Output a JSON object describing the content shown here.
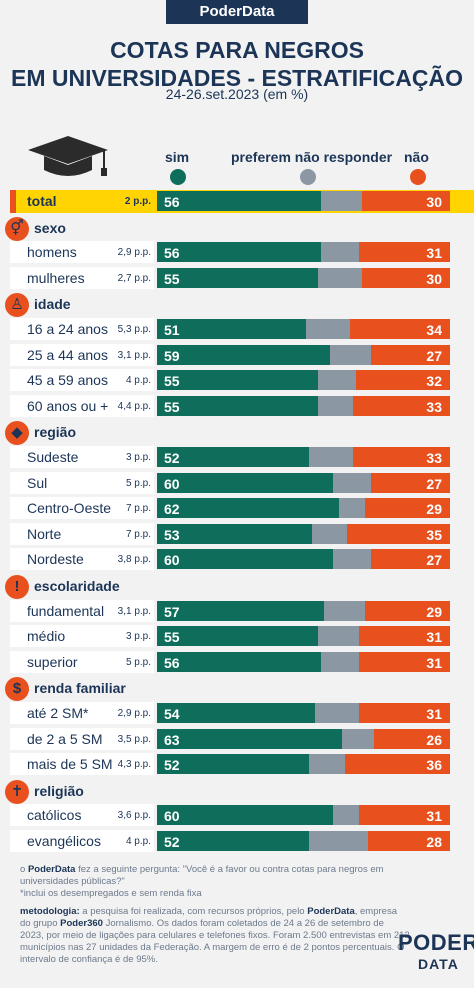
{
  "brand": "PoderData",
  "title_line1": "COTAS PARA NEGROS",
  "title_line2": "EM UNIVERSIDADES - ESTRATIFICAÇÃO",
  "subtitle": "24-26.set.2023 (em %)",
  "legend": {
    "sim": "sim",
    "preferem": "preferem não responder",
    "nao": "não"
  },
  "colors": {
    "sim": "#0f6e5b",
    "preferem": "#8b97a3",
    "nao": "#e8501e",
    "highlight": "#ffd400",
    "row_bg": "#ffffff"
  },
  "chart_data": {
    "type": "bar",
    "orientation": "horizontal-stacked",
    "series": [
      {
        "name": "sim"
      },
      {
        "name": "preferem não responder"
      },
      {
        "name": "não"
      }
    ],
    "groups": [
      {
        "title": "",
        "icon": "",
        "rows": [
          {
            "label": "total",
            "pp": "2 p.p.",
            "sim": 56,
            "nao": 30,
            "highlight": true
          }
        ]
      },
      {
        "title": "sexo",
        "icon": "gender-icon",
        "glyph": "⚥",
        "rows": [
          {
            "label": "homens",
            "pp": "2,9 p.p.",
            "sim": 56,
            "nao": 31
          },
          {
            "label": "mulheres",
            "pp": "2,7 p.p.",
            "sim": 55,
            "nao": 30
          }
        ]
      },
      {
        "title": "idade",
        "icon": "person-icon",
        "glyph": "♙",
        "rows": [
          {
            "label": "16 a 24 anos",
            "pp": "5,3 p.p.",
            "sim": 51,
            "nao": 34
          },
          {
            "label": "25 a 44 anos",
            "pp": "3,1 p.p.",
            "sim": 59,
            "nao": 27
          },
          {
            "label": "45 a 59 anos",
            "pp": "4 p.p.",
            "sim": 55,
            "nao": 32
          },
          {
            "label": "60 anos ou +",
            "pp": "4,4 p.p.",
            "sim": 55,
            "nao": 33
          }
        ]
      },
      {
        "title": "região",
        "icon": "brazil-map-icon",
        "glyph": "◆",
        "rows": [
          {
            "label": "Sudeste",
            "pp": "3 p.p.",
            "sim": 52,
            "nao": 33
          },
          {
            "label": "Sul",
            "pp": "5 p.p.",
            "sim": 60,
            "nao": 27
          },
          {
            "label": "Centro-Oeste",
            "pp": "7 p.p.",
            "sim": 62,
            "nao": 29
          },
          {
            "label": "Norte",
            "pp": "7 p.p.",
            "sim": 53,
            "nao": 35
          },
          {
            "label": "Nordeste",
            "pp": "3,8 p.p.",
            "sim": 60,
            "nao": 27
          }
        ]
      },
      {
        "title": "escolaridade",
        "icon": "exclamation-icon",
        "glyph": "!",
        "rows": [
          {
            "label": "fundamental",
            "pp": "3,1 p.p.",
            "sim": 57,
            "nao": 29
          },
          {
            "label": "médio",
            "pp": "3 p.p.",
            "sim": 55,
            "nao": 31
          },
          {
            "label": "superior",
            "pp": "5 p.p.",
            "sim": 56,
            "nao": 31
          }
        ]
      },
      {
        "title": "renda familiar",
        "icon": "dollar-icon",
        "glyph": "$",
        "rows": [
          {
            "label": "até 2 SM*",
            "pp": "2,9 p.p.",
            "sim": 54,
            "nao": 31
          },
          {
            "label": "de 2 a 5 SM",
            "pp": "3,5 p.p.",
            "sim": 63,
            "nao": 26
          },
          {
            "label": "mais de 5 SM",
            "pp": "4,3 p.p.",
            "sim": 52,
            "nao": 36
          }
        ]
      },
      {
        "title": "religião",
        "icon": "cross-icon",
        "glyph": "✝",
        "rows": [
          {
            "label": "católicos",
            "pp": "3,6 p.p.",
            "sim": 60,
            "nao": 31
          },
          {
            "label": "evangélicos",
            "pp": "4 p.p.",
            "sim": 52,
            "nao": 28
          }
        ]
      }
    ]
  },
  "footer": {
    "question_brand": "PoderData",
    "question_text": " fez a seguinte pergunta: \"Você é a favor ou contra cotas para negros em universidades públicas?\"",
    "note": "*inclui os desempregados e sem renda fixa",
    "method_label": "metodologia:",
    "method_text_1": " a pesquisa foi realizada, com recursos próprios, pelo ",
    "method_brand": "PoderData",
    "method_text_2": ", empresa do grupo ",
    "method_brand2": "Poder360",
    "method_text_3": " Jornalismo. Os dados foram coletados de 24 a 26 de setembro de 2023, por meio de ligações para celulares e telefones fixos. Foram 2.500 entrevistas em 212 municípios nas 27 unidades da Federação. A margem de erro é de 2 pontos percentuais. O intervalo de confiança é de 95%.",
    "logo_line1": "PODER",
    "logo_line2": "DATA"
  }
}
